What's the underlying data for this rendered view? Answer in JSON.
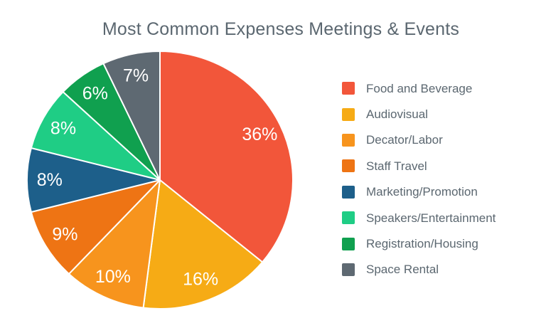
{
  "page": {
    "background": "#FFFFFF"
  },
  "chart_data": {
    "type": "pie",
    "title": "Most Common Expenses Meetings & Events",
    "title_color": "#5B6770",
    "categories": [
      "Food and Beverage",
      "Audiovisual",
      "Decator/Labor",
      "Staff Travel",
      "Marketing/Promotion",
      "Speakers/Entertainment",
      "Registration/Housing",
      "Space Rental"
    ],
    "values": [
      36,
      16,
      10,
      9,
      8,
      8,
      6,
      7
    ],
    "slice_labels": [
      "36%",
      "16%",
      "10%",
      "9%",
      "8%",
      "8%",
      "6%",
      "7%"
    ],
    "colors": [
      "#F2563A",
      "#F6AB15",
      "#F7941D",
      "#EE7414",
      "#1D5F8A",
      "#1FCD85",
      "#10A04F",
      "#5E6972"
    ],
    "slice_label_color": "#FFFFFF",
    "slice_border_color": "#FFFFFF",
    "legend_position": "right",
    "legend_text_color": "#5B6770",
    "start_angle_deg": 0,
    "direction": "clockwise",
    "total": 100,
    "grid": false
  }
}
